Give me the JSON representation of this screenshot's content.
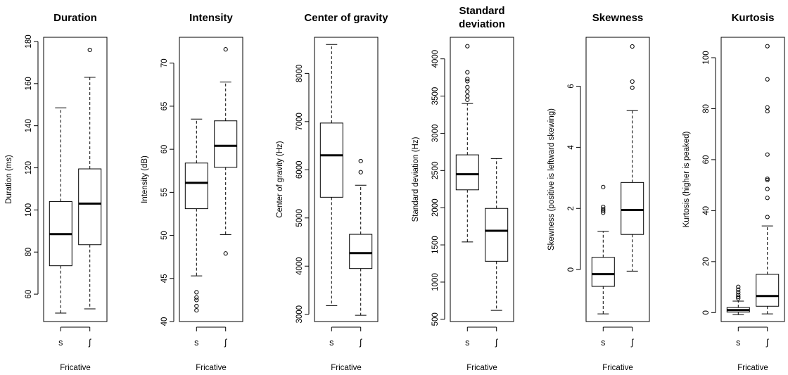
{
  "chart_data": [
    {
      "type": "boxplot",
      "title": [
        "Duration"
      ],
      "ylabel": "Duration (ms)",
      "xlabel": "Fricative",
      "categories": [
        "s",
        "ʃ"
      ],
      "ylim": [
        47,
        182
      ],
      "yticks": [
        60,
        80,
        100,
        120,
        140,
        160,
        180
      ],
      "boxes": [
        {
          "name": "s",
          "min": 51,
          "q1": 73.5,
          "median": 88.5,
          "q3": 104,
          "max": 148.5,
          "outliers": []
        },
        {
          "name": "ʃ",
          "min": 53,
          "q1": 83.5,
          "median": 103,
          "q3": 119.5,
          "max": 163,
          "outliers": [
            176
          ]
        }
      ]
    },
    {
      "type": "boxplot",
      "title": [
        "Intensity"
      ],
      "ylabel": "Intensity (dB)",
      "xlabel": "Fricative",
      "categories": [
        "s",
        "ʃ"
      ],
      "ylim": [
        40,
        73
      ],
      "yticks": [
        40,
        45,
        50,
        55,
        60,
        65,
        70
      ],
      "boxes": [
        {
          "name": "s",
          "min": 45.3,
          "q1": 53.1,
          "median": 56.1,
          "q3": 58.4,
          "max": 63.5,
          "outliers": [
            43.4,
            42.8,
            42.5,
            41.8,
            41.3
          ]
        },
        {
          "name": "ʃ",
          "min": 50.1,
          "q1": 57.9,
          "median": 60.4,
          "q3": 63.3,
          "max": 67.8,
          "outliers": [
            71.6,
            47.9
          ]
        }
      ]
    },
    {
      "type": "boxplot",
      "title": [
        "Center of gravity"
      ],
      "ylabel": "Center of gravity (Hz)",
      "xlabel": "Fricative",
      "categories": [
        "s",
        "ʃ"
      ],
      "ylim": [
        2850,
        8750
      ],
      "yticks": [
        3000,
        4000,
        5000,
        6000,
        7000,
        8000
      ],
      "boxes": [
        {
          "name": "s",
          "min": 3180,
          "q1": 5430,
          "median": 6300,
          "q3": 6970,
          "max": 8600,
          "outliers": []
        },
        {
          "name": "ʃ",
          "min": 2980,
          "q1": 3950,
          "median": 4270,
          "q3": 4660,
          "max": 5680,
          "outliers": [
            6180,
            5950
          ]
        }
      ]
    },
    {
      "type": "boxplot",
      "title": [
        "Standard",
        "deviation"
      ],
      "ylabel": "Standard deviation (Hz)",
      "xlabel": "Fricative",
      "categories": [
        "s",
        "ʃ"
      ],
      "ylim": [
        470,
        4290
      ],
      "yticks": [
        500,
        1000,
        1500,
        2000,
        2500,
        3000,
        3500,
        4000
      ],
      "boxes": [
        {
          "name": "s",
          "min": 1540,
          "q1": 2240,
          "median": 2450,
          "q3": 2710,
          "max": 3400,
          "outliers": [
            4170,
            3820,
            3730,
            3700,
            3620,
            3560,
            3500,
            3450
          ]
        },
        {
          "name": "ʃ",
          "min": 620,
          "q1": 1280,
          "median": 1690,
          "q3": 1990,
          "max": 2660,
          "outliers": []
        }
      ]
    },
    {
      "type": "boxplot",
      "title": [
        "Skewness"
      ],
      "ylabel": "Skewness (positive is leftward skewing)",
      "xlabel": "Fricative",
      "categories": [
        "s",
        "ʃ"
      ],
      "ylim": [
        -1.7,
        7.6
      ],
      "yticks": [
        0,
        2,
        4,
        6
      ],
      "boxes": [
        {
          "name": "s",
          "min": -1.45,
          "q1": -0.55,
          "median": -0.15,
          "q3": 0.4,
          "max": 1.25,
          "outliers": [
            2.7,
            2.05,
            1.98,
            1.92,
            1.86
          ]
        },
        {
          "name": "ʃ",
          "min": -0.05,
          "q1": 1.15,
          "median": 1.95,
          "q3": 2.85,
          "max": 5.2,
          "outliers": [
            7.3,
            6.15,
            5.95
          ]
        }
      ]
    },
    {
      "type": "boxplot",
      "title": [
        "Kurtosis"
      ],
      "ylabel": "Kurtosis (higher is peaked)",
      "xlabel": "Fricative",
      "categories": [
        "s",
        "ʃ"
      ],
      "ylim": [
        -3.5,
        108
      ],
      "yticks": [
        0,
        20,
        40,
        60,
        80,
        100
      ],
      "boxes": [
        {
          "name": "s",
          "min": -0.8,
          "q1": 0.2,
          "median": 1,
          "q3": 2,
          "max": 4.5,
          "outliers": [
            10.1,
            9,
            8,
            7,
            6.2,
            5.6
          ]
        },
        {
          "name": "ʃ",
          "min": -0.5,
          "q1": 2.5,
          "median": 6.5,
          "q3": 15,
          "max": 34,
          "outliers": [
            104.5,
            91.5,
            80.5,
            79,
            62,
            52.5,
            52,
            48.5,
            45,
            37.5
          ]
        }
      ]
    }
  ]
}
